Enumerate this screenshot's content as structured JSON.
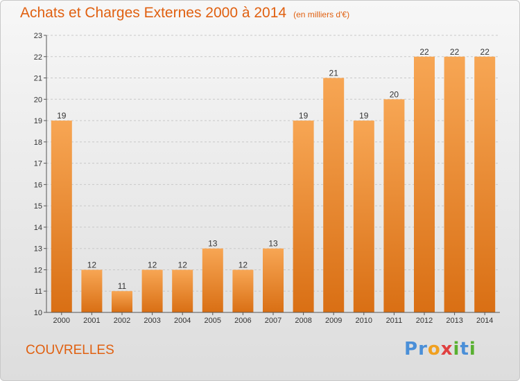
{
  "title": "Achats et Charges Externes 2000 à 2014",
  "unit": "(en milliers d'€)",
  "place": "COUVRELLES",
  "logo": {
    "text": "Proxiti",
    "letters": [
      {
        "ch": "P",
        "color": "#4a8fd8"
      },
      {
        "ch": "r",
        "color": "#4a8fd8"
      },
      {
        "ch": "o",
        "color": "#f0a020"
      },
      {
        "ch": "x",
        "color": "#e04040"
      },
      {
        "ch": "i",
        "color": "#58b030"
      },
      {
        "ch": "t",
        "color": "#4a8fd8"
      },
      {
        "ch": "i",
        "color": "#58b030"
      }
    ]
  },
  "colors": {
    "accent": "#e06010",
    "bar_top": "#f7a654",
    "bar_bottom": "#d96f14",
    "grid": "#c8c8c8"
  },
  "chart_data": {
    "type": "bar",
    "categories": [
      "2000",
      "2001",
      "2002",
      "2003",
      "2004",
      "2005",
      "2006",
      "2007",
      "2008",
      "2009",
      "2010",
      "2011",
      "2012",
      "2013",
      "2014"
    ],
    "values": [
      19,
      12,
      11,
      12,
      12,
      13,
      12,
      13,
      19,
      21,
      19,
      20,
      22,
      22,
      22
    ],
    "ylim": [
      10,
      23
    ],
    "yticks": [
      10,
      11,
      12,
      13,
      14,
      15,
      16,
      17,
      18,
      19,
      20,
      21,
      22,
      23
    ],
    "grid": true
  }
}
